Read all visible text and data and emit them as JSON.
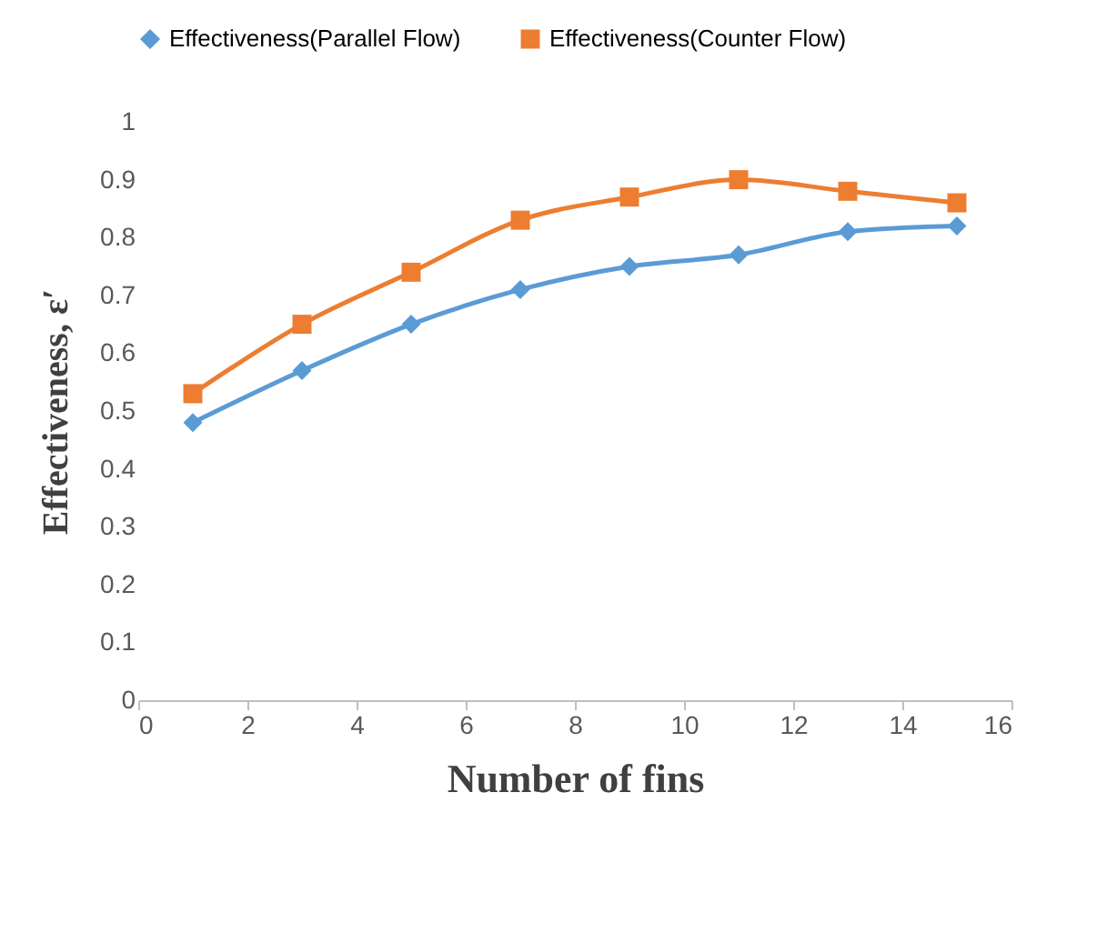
{
  "chart_data": {
    "type": "line",
    "xlabel": "Number of fins",
    "ylabel": "Effectiveness, ε′",
    "x": [
      1,
      3,
      5,
      7,
      9,
      11,
      13,
      15
    ],
    "series": [
      {
        "name": "Effectiveness(Parallel Flow)",
        "color": "#5b9bd5",
        "marker": "diamond",
        "values": [
          0.48,
          0.57,
          0.65,
          0.71,
          0.75,
          0.77,
          0.81,
          0.82
        ]
      },
      {
        "name": "Effectiveness(Counter Flow)",
        "color": "#ed7d31",
        "marker": "square",
        "values": [
          0.53,
          0.65,
          0.74,
          0.83,
          0.87,
          0.9,
          0.88,
          0.86
        ]
      }
    ],
    "xlim": [
      0,
      16
    ],
    "xticks": [
      0,
      2,
      4,
      6,
      8,
      10,
      12,
      14,
      16
    ],
    "ylim": [
      0,
      1
    ],
    "yticks": [
      0,
      0.1,
      0.2,
      0.3,
      0.4,
      0.5,
      0.6,
      0.7,
      0.8,
      0.9,
      1
    ],
    "grid": false,
    "legend": "top",
    "line_style": "solid"
  }
}
